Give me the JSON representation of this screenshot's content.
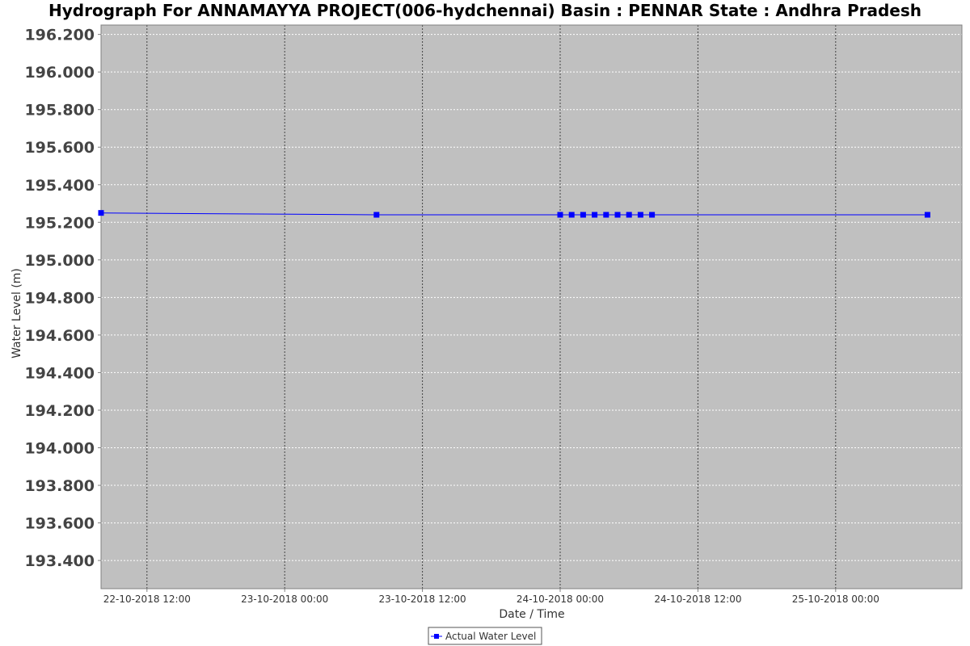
{
  "chart_data": {
    "type": "line",
    "title": "Hydrograph For ANNAMAYYA PROJECT(006-hydchennai) Basin : PENNAR State : Andhra Pradesh",
    "xlabel": "Date / Time",
    "ylabel": "Water Level (m)",
    "x_ticks": [
      {
        "value": "2018-10-22T12:00",
        "label": "22-10-2018 12:00"
      },
      {
        "value": "2018-10-23T00:00",
        "label": "23-10-2018 00:00"
      },
      {
        "value": "2018-10-23T12:00",
        "label": "23-10-2018 12:00"
      },
      {
        "value": "2018-10-24T00:00",
        "label": "24-10-2018 00:00"
      },
      {
        "value": "2018-10-24T12:00",
        "label": "24-10-2018 12:00"
      },
      {
        "value": "2018-10-25T00:00",
        "label": "25-10-2018 00:00"
      }
    ],
    "xlim": [
      "2018-10-22T08:00",
      "2018-10-25T11:00"
    ],
    "ylim": [
      193.25,
      196.25
    ],
    "y_ticks": [
      196.2,
      196.0,
      195.8,
      195.6,
      195.4,
      195.2,
      195.0,
      194.8,
      194.6,
      194.4,
      194.2,
      194.0,
      193.8,
      193.6,
      193.4
    ],
    "y_tick_labels": [
      "196.200",
      "196.000",
      "195.800",
      "195.600",
      "195.400",
      "195.200",
      "195.000",
      "194.800",
      "194.600",
      "194.400",
      "194.200",
      "194.000",
      "193.800",
      "193.600",
      "193.400"
    ],
    "grid": true,
    "legend_position": "bottom-center",
    "series": [
      {
        "name": "Actual Water Level",
        "color": "#0000ff",
        "points": [
          {
            "x": "2018-10-22T08:00",
            "y": 195.25
          },
          {
            "x": "2018-10-23T08:00",
            "y": 195.24
          },
          {
            "x": "2018-10-24T00:00",
            "y": 195.24
          },
          {
            "x": "2018-10-24T01:00",
            "y": 195.24
          },
          {
            "x": "2018-10-24T02:00",
            "y": 195.24
          },
          {
            "x": "2018-10-24T03:00",
            "y": 195.24
          },
          {
            "x": "2018-10-24T04:00",
            "y": 195.24
          },
          {
            "x": "2018-10-24T05:00",
            "y": 195.24
          },
          {
            "x": "2018-10-24T06:00",
            "y": 195.24
          },
          {
            "x": "2018-10-24T07:00",
            "y": 195.24
          },
          {
            "x": "2018-10-24T08:00",
            "y": 195.24
          },
          {
            "x": "2018-10-25T08:00",
            "y": 195.24
          }
        ]
      }
    ],
    "colors": {
      "plot_background": "#c0c0c0",
      "grid": "#ffffff",
      "series": "#0000ff"
    }
  }
}
